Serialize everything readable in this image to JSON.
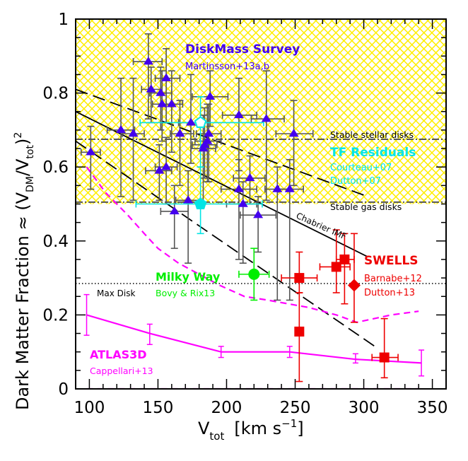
{
  "chart_data": {
    "type": "scatter",
    "title": "",
    "xlabel": "V_tot [km s^-1]",
    "xlabel_parts": {
      "main": "V",
      "sub": "tot",
      "unit_open": "[km s",
      "unit_sup": "−1",
      "unit_close": "]"
    },
    "ylabel": "Dark Matter Fraction ≈ (V_DM/V_tot)^2",
    "ylabel_parts": {
      "main": "Dark Matter Fraction ≈ (V",
      "sub1": "DM",
      "mid": "/V",
      "sub2": "tot",
      "close": ")",
      "sup": "2"
    },
    "xlim": [
      90,
      360
    ],
    "ylim": [
      0,
      1
    ],
    "grid": false,
    "xticks": [
      100,
      150,
      200,
      250,
      300,
      350
    ],
    "xtick_labels": [
      "100",
      "150",
      "200",
      "250",
      "300",
      "350"
    ],
    "yticks": [
      0,
      0.2,
      0.4,
      0.6,
      0.8,
      1
    ],
    "ytick_labels": [
      "0",
      "0.2",
      "0.4",
      "0.6",
      "0.8",
      "1"
    ],
    "regions": [
      {
        "name": "Stable stellar disks / gas disks hatched band",
        "y_from": 0.5,
        "y_to": 1.0,
        "color": "#ffff00",
        "pattern": "crosshatch"
      }
    ],
    "reference_lines": [
      {
        "label": "Stable stellar disks",
        "y": 0.675,
        "style": "dash-dot",
        "color": "#555555"
      },
      {
        "label": "Stable gas disks",
        "y": 0.505,
        "style": "dash-dot",
        "color": "#555555"
      },
      {
        "label": "Max Disk",
        "y": 0.285,
        "style": "dotted",
        "color": "#000000"
      }
    ],
    "series": [
      {
        "name": "Chabrier IMF",
        "kind": "line",
        "style": "solid",
        "color": "#000000",
        "points": [
          [
            90,
            0.75
          ],
          [
            303,
            0.357
          ]
        ]
      },
      {
        "name": "Chabrier IMF upper",
        "kind": "line",
        "style": "long-dash",
        "color": "#000000",
        "points": [
          [
            90,
            0.81
          ],
          [
            300,
            0.524
          ]
        ]
      },
      {
        "name": "Chabrier IMF lower",
        "kind": "line",
        "style": "long-dash",
        "color": "#000000",
        "points": [
          [
            90,
            0.67
          ],
          [
            310,
            0.11
          ]
        ]
      },
      {
        "name": "ATLAS3D model curve",
        "kind": "line",
        "style": "dashed",
        "color": "#ff00ff",
        "points": [
          [
            98,
            0.6
          ],
          [
            112,
            0.53
          ],
          [
            128,
            0.47
          ],
          [
            140,
            0.42
          ],
          [
            150,
            0.38
          ],
          [
            165,
            0.34
          ],
          [
            180,
            0.31
          ],
          [
            195,
            0.28
          ],
          [
            213,
            0.25
          ],
          [
            230,
            0.24
          ],
          [
            260,
            0.22
          ],
          [
            280,
            0.2
          ],
          [
            295,
            0.18
          ],
          [
            320,
            0.2
          ],
          [
            340,
            0.21
          ]
        ]
      },
      {
        "name": "ATLAS3D baseline",
        "kind": "line",
        "style": "dashed",
        "color": "#ff00ff",
        "points": [
          [
            98,
            0.0
          ],
          [
            340,
            0.0
          ]
        ]
      },
      {
        "name": "ATLAS3D",
        "label": "ATLAS3D",
        "ref": "Cappellari+13",
        "kind": "line-errorbar",
        "style": "solid",
        "color": "#ff00ff",
        "points": [
          {
            "x": 98,
            "y": 0.2,
            "ylo": 0.145,
            "yhi": 0.255
          },
          {
            "x": 144,
            "y": 0.15,
            "ylo": 0.12,
            "yhi": 0.175
          },
          {
            "x": 196,
            "y": 0.1,
            "ylo": 0.085,
            "yhi": 0.115
          },
          {
            "x": 246,
            "y": 0.1,
            "ylo": 0.085,
            "yhi": 0.115
          },
          {
            "x": 294,
            "y": 0.08,
            "ylo": 0.07,
            "yhi": 0.095
          },
          {
            "x": 342,
            "y": 0.07,
            "ylo": 0.035,
            "yhi": 0.105
          }
        ]
      },
      {
        "name": "DiskMass Survey",
        "label": "DiskMass Survey",
        "ref": "Martinsson+13a,b",
        "kind": "scatter",
        "marker": "triangle",
        "color": "#4400ee",
        "errcolor": "#555555",
        "points": [
          {
            "x": 101,
            "y": 0.64,
            "xlo": 94,
            "xhi": 108,
            "ylo": 0.54,
            "yhi": 0.71
          },
          {
            "x": 123,
            "y": 0.7,
            "xlo": 113,
            "xhi": 133,
            "ylo": 0.52,
            "yhi": 0.84
          },
          {
            "x": 132,
            "y": 0.69,
            "xlo": 124,
            "xhi": 140,
            "ylo": 0.51,
            "yhi": 0.84
          },
          {
            "x": 143,
            "y": 0.885,
            "xlo": 132,
            "xhi": 153,
            "ylo": 0.73,
            "yhi": 0.96
          },
          {
            "x": 145,
            "y": 0.81,
            "xlo": 138,
            "xhi": 152,
            "ylo": 0.72,
            "yhi": 0.87
          },
          {
            "x": 152,
            "y": 0.8,
            "xlo": 144,
            "xhi": 160,
            "ylo": 0.7,
            "yhi": 0.87
          },
          {
            "x": 156,
            "y": 0.84,
            "xlo": 148,
            "xhi": 166,
            "ylo": 0.72,
            "yhi": 0.92
          },
          {
            "x": 153,
            "y": 0.77,
            "xlo": 146,
            "xhi": 160,
            "ylo": 0.67,
            "yhi": 0.86
          },
          {
            "x": 160,
            "y": 0.77,
            "xlo": 152,
            "xhi": 168,
            "ylo": 0.64,
            "yhi": 0.86
          },
          {
            "x": 151,
            "y": 0.59,
            "xlo": 141,
            "xhi": 160,
            "ylo": 0.51,
            "yhi": 0.66
          },
          {
            "x": 156,
            "y": 0.6,
            "xlo": 148,
            "xhi": 164,
            "ylo": 0.5,
            "yhi": 0.68
          },
          {
            "x": 166,
            "y": 0.69,
            "xlo": 159,
            "xhi": 176,
            "ylo": 0.55,
            "yhi": 0.78
          },
          {
            "x": 174,
            "y": 0.72,
            "xlo": 165,
            "xhi": 186,
            "ylo": 0.61,
            "yhi": 0.85
          },
          {
            "x": 162,
            "y": 0.48,
            "xlo": 152,
            "xhi": 172,
            "ylo": 0.38,
            "yhi": 0.55
          },
          {
            "x": 172,
            "y": 0.51,
            "xlo": 163,
            "xhi": 181,
            "ylo": 0.34,
            "yhi": 0.59
          },
          {
            "x": 188,
            "y": 0.79,
            "xlo": 175,
            "xhi": 201,
            "ylo": 0.71,
            "yhi": 0.86
          },
          {
            "x": 187,
            "y": 0.69,
            "xlo": 178,
            "xhi": 196,
            "ylo": 0.56,
            "yhi": 0.77
          },
          {
            "x": 186,
            "y": 0.67,
            "xlo": 177,
            "xhi": 196,
            "ylo": 0.56,
            "yhi": 0.77
          },
          {
            "x": 184,
            "y": 0.66,
            "xlo": 175,
            "xhi": 193,
            "ylo": 0.57,
            "yhi": 0.76
          },
          {
            "x": 183,
            "y": 0.65,
            "xlo": 174,
            "xhi": 192,
            "ylo": 0.5,
            "yhi": 0.74
          },
          {
            "x": 209,
            "y": 0.74,
            "xlo": 197,
            "xhi": 222,
            "ylo": 0.59,
            "yhi": 0.84
          },
          {
            "x": 229,
            "y": 0.73,
            "xlo": 218,
            "xhi": 242,
            "ylo": 0.51,
            "yhi": 0.86
          },
          {
            "x": 249,
            "y": 0.69,
            "xlo": 236,
            "xhi": 263,
            "ylo": 0.55,
            "yhi": 0.78
          },
          {
            "x": 217,
            "y": 0.57,
            "xlo": 205,
            "xhi": 228,
            "ylo": 0.5,
            "yhi": 0.63
          },
          {
            "x": 209,
            "y": 0.54,
            "xlo": 196,
            "xhi": 222,
            "ylo": 0.35,
            "yhi": 0.62
          },
          {
            "x": 237,
            "y": 0.54,
            "xlo": 228,
            "xhi": 246,
            "ylo": 0.24,
            "yhi": 0.6
          },
          {
            "x": 246,
            "y": 0.54,
            "xlo": 238,
            "xhi": 256,
            "ylo": 0.24,
            "yhi": 0.62
          },
          {
            "x": 212,
            "y": 0.5,
            "xlo": 200,
            "xhi": 222,
            "ylo": 0.34,
            "yhi": 0.56
          },
          {
            "x": 223,
            "y": 0.47,
            "xlo": 210,
            "xhi": 236,
            "ylo": 0.37,
            "yhi": 0.52
          }
        ]
      },
      {
        "name": "TF Residuals",
        "label": "TF Residuals",
        "ref": [
          "Courteau+07",
          "Dutton+07"
        ],
        "kind": "scatter",
        "marker": "pentagon",
        "color": "#00e5e5",
        "points": [
          {
            "x": 181,
            "y": 0.72,
            "xlo": 137,
            "xhi": 227,
            "ylo": 0.6,
            "yhi": 0.79,
            "open": true
          },
          {
            "x": 181,
            "y": 0.5,
            "xlo": 134,
            "xhi": 226,
            "ylo": 0.42,
            "yhi": 0.6,
            "open": false
          }
        ]
      },
      {
        "name": "Milky Way",
        "label": "Milky Way",
        "ref": "Bovy & Rix13",
        "kind": "scatter",
        "marker": "circle",
        "color": "#00ee00",
        "points": [
          {
            "x": 220,
            "y": 0.31,
            "xlo": 209,
            "xhi": 231,
            "ylo": 0.24,
            "yhi": 0.38
          }
        ]
      },
      {
        "name": "SWELLS",
        "label": "SWELLS",
        "ref": [
          "Barnabe+12",
          "Dutton+13"
        ],
        "kind": "scatter",
        "marker": "square",
        "color": "#ee0000",
        "points": [
          {
            "x": 253,
            "y": 0.3,
            "xlo": 240,
            "xhi": 266,
            "ylo": 0.26,
            "yhi": 0.37
          },
          {
            "x": 253,
            "y": 0.155,
            "xlo": 250,
            "xhi": 256,
            "ylo": 0.02,
            "yhi": 0.26
          },
          {
            "x": 280,
            "y": 0.33,
            "xlo": 268,
            "xhi": 290,
            "ylo": 0.26,
            "yhi": 0.43
          },
          {
            "x": 286,
            "y": 0.35,
            "xlo": 280,
            "xhi": 293,
            "ylo": 0.23,
            "yhi": 0.42
          },
          {
            "x": 315,
            "y": 0.085,
            "xlo": 306,
            "xhi": 325,
            "ylo": 0.03,
            "yhi": 0.19
          }
        ]
      },
      {
        "name": "SWELLS diamond",
        "kind": "scatter",
        "marker": "diamond",
        "color": "#ee0000",
        "points": [
          {
            "x": 293,
            "y": 0.28,
            "xlo": 293,
            "xhi": 293,
            "ylo": 0.18,
            "yhi": 0.42
          }
        ]
      }
    ],
    "annotations": [
      {
        "text": "DiskMass Survey",
        "color": "#4400ee",
        "bold": true
      },
      {
        "text": "Martinsson+13a,b",
        "color": "#4400ee"
      },
      {
        "text": "Stable stellar disks",
        "color": "#000000"
      },
      {
        "text": "TF Residuals",
        "color": "#00e5e5",
        "bold": true
      },
      {
        "text": "Courteau+07",
        "color": "#00e5e5"
      },
      {
        "text": "Dutton+07",
        "color": "#00e5e5"
      },
      {
        "text": "Stable gas disks",
        "color": "#000000"
      },
      {
        "text": "Chabrier IMF",
        "color": "#000000"
      },
      {
        "text": "SWELLS",
        "color": "#ee0000",
        "bold": true
      },
      {
        "text": "Barnabe+12",
        "color": "#ee0000"
      },
      {
        "text": "Dutton+13",
        "color": "#ee0000"
      },
      {
        "text": "Milky Way",
        "color": "#00ee00",
        "bold": true
      },
      {
        "text": "Bovy & Rix13",
        "color": "#00ee00"
      },
      {
        "text": "Max Disk",
        "color": "#000000"
      },
      {
        "text": "ATLAS3D",
        "color": "#ff00ff",
        "bold": true
      },
      {
        "text": "Cappellari+13",
        "color": "#ff00ff"
      }
    ]
  }
}
